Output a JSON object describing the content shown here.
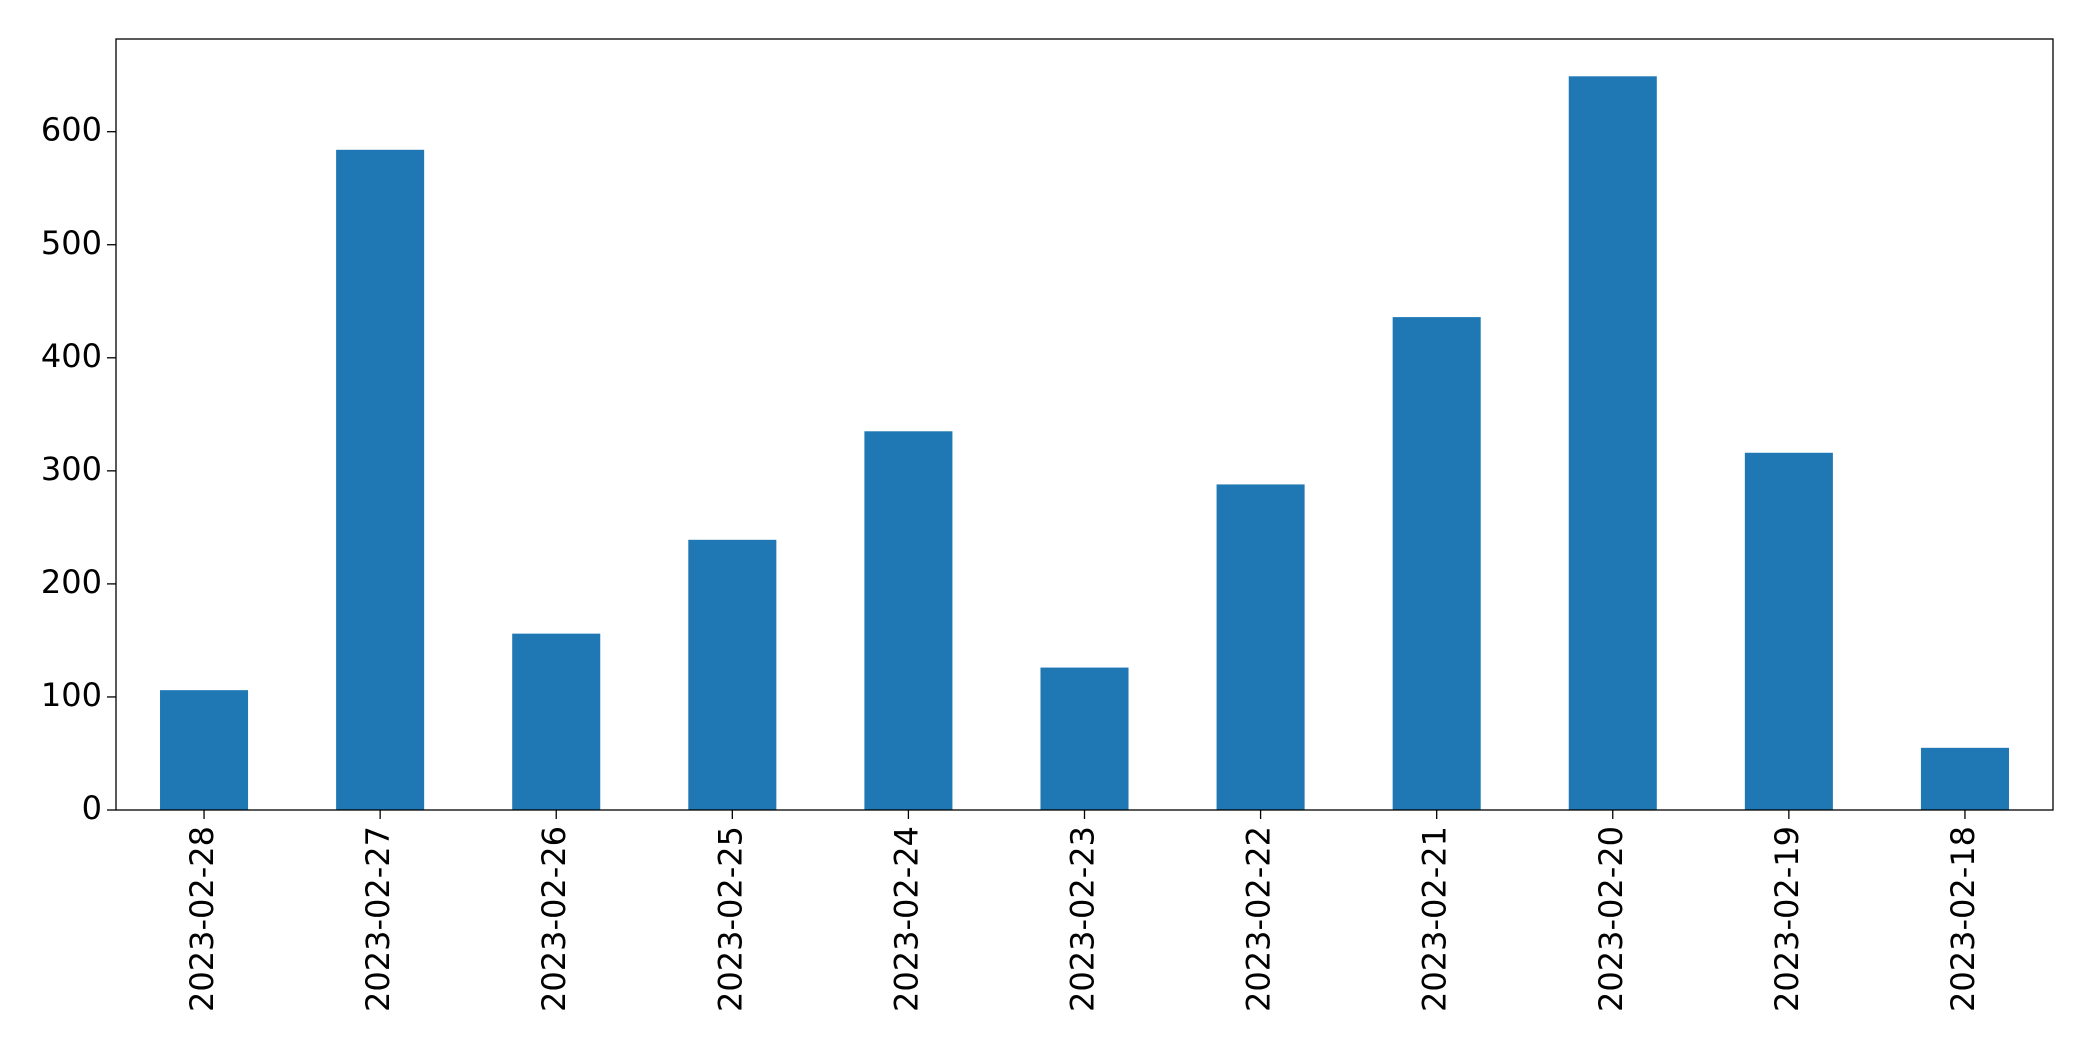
{
  "chart_data": {
    "type": "bar",
    "categories": [
      "2023-02-28",
      "2023-02-27",
      "2023-02-26",
      "2023-02-25",
      "2023-02-24",
      "2023-02-23",
      "2023-02-22",
      "2023-02-21",
      "2023-02-20",
      "2023-02-19",
      "2023-02-18"
    ],
    "values": [
      106,
      584,
      156,
      239,
      335,
      126,
      288,
      436,
      649,
      316,
      55
    ],
    "color": "#1f77b4",
    "ylim": [
      0,
      682
    ],
    "yticks": [
      0,
      100,
      200,
      300,
      400,
      500,
      600
    ],
    "grid": false
  }
}
